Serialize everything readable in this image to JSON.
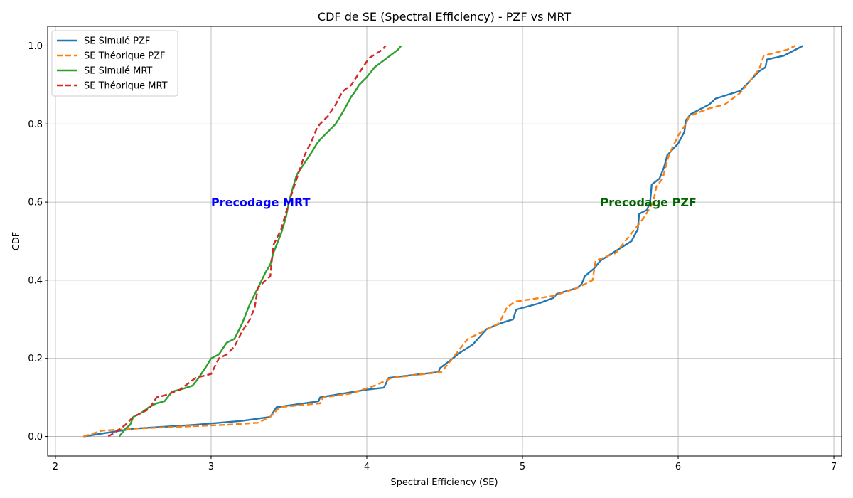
{
  "chart_data": {
    "type": "line",
    "title": "CDF de SE (Spectral Efficiency) - PZF vs MRT",
    "xlabel": "Spectral Efficiency (SE)",
    "ylabel": "CDF",
    "xlim": [
      1.95,
      7.05
    ],
    "ylim": [
      -0.05,
      1.05
    ],
    "xticks": [
      2,
      3,
      4,
      5,
      6,
      7
    ],
    "yticks": [
      0.0,
      0.2,
      0.4,
      0.6,
      0.8,
      1.0
    ],
    "xtick_labels": [
      "2",
      "3",
      "4",
      "5",
      "6",
      "7"
    ],
    "ytick_labels": [
      "0.0",
      "0.2",
      "0.4",
      "0.6",
      "0.8",
      "1.0"
    ],
    "grid": true,
    "legend": "top-left",
    "series": [
      {
        "name": "SE Simulé PZF",
        "color": "#1f77b4",
        "style": "solid",
        "x": [
          2.18,
          2.5,
          2.9,
          3.2,
          3.38,
          3.42,
          3.69,
          3.7,
          4.0,
          4.11,
          4.14,
          4.46,
          4.47,
          4.52,
          4.6,
          4.68,
          4.77,
          4.86,
          4.94,
          4.96,
          5.1,
          5.2,
          5.22,
          5.35,
          5.38,
          5.4,
          5.46,
          5.5,
          5.6,
          5.7,
          5.74,
          5.75,
          5.8,
          5.82,
          5.83,
          5.88,
          5.91,
          5.93,
          6.0,
          6.04,
          6.05,
          6.08,
          6.2,
          6.24,
          6.4,
          6.52,
          6.56,
          6.57,
          6.68,
          6.8
        ],
        "y": [
          0.0,
          0.02,
          0.03,
          0.04,
          0.05,
          0.075,
          0.09,
          0.1,
          0.12,
          0.125,
          0.15,
          0.165,
          0.175,
          0.19,
          0.215,
          0.235,
          0.275,
          0.29,
          0.3,
          0.325,
          0.34,
          0.355,
          0.365,
          0.38,
          0.39,
          0.41,
          0.43,
          0.45,
          0.475,
          0.5,
          0.53,
          0.57,
          0.58,
          0.6,
          0.645,
          0.66,
          0.69,
          0.72,
          0.75,
          0.78,
          0.81,
          0.825,
          0.85,
          0.865,
          0.885,
          0.935,
          0.945,
          0.965,
          0.975,
          1.0
        ]
      },
      {
        "name": "SE Théorique PZF",
        "color": "#ff7f0e",
        "style": "dashed",
        "x": [
          2.18,
          2.3,
          2.5,
          2.8,
          3.1,
          3.3,
          3.38,
          3.44,
          3.7,
          3.72,
          3.9,
          4.05,
          4.16,
          4.48,
          4.55,
          4.65,
          4.85,
          4.9,
          4.95,
          5.2,
          5.35,
          5.45,
          5.47,
          5.6,
          5.7,
          5.78,
          5.84,
          5.86,
          5.9,
          5.94,
          6.0,
          6.05,
          6.07,
          6.2,
          6.3,
          6.4,
          6.52,
          6.55,
          6.7,
          6.75
        ],
        "y": [
          0.0,
          0.015,
          0.02,
          0.025,
          0.03,
          0.035,
          0.05,
          0.075,
          0.085,
          0.1,
          0.11,
          0.13,
          0.15,
          0.165,
          0.2,
          0.25,
          0.29,
          0.33,
          0.345,
          0.36,
          0.38,
          0.4,
          0.45,
          0.47,
          0.52,
          0.56,
          0.6,
          0.64,
          0.66,
          0.72,
          0.77,
          0.8,
          0.82,
          0.84,
          0.85,
          0.88,
          0.94,
          0.975,
          0.99,
          1.0
        ]
      },
      {
        "name": "SE Simulé MRT",
        "color": "#2ca02c",
        "style": "solid",
        "x": [
          2.41,
          2.45,
          2.48,
          2.5,
          2.55,
          2.6,
          2.65,
          2.7,
          2.75,
          2.8,
          2.88,
          2.92,
          2.97,
          3.0,
          3.05,
          3.1,
          3.15,
          3.2,
          3.22,
          3.25,
          3.3,
          3.35,
          3.38,
          3.4,
          3.45,
          3.48,
          3.5,
          3.52,
          3.55,
          3.6,
          3.65,
          3.68,
          3.7,
          3.75,
          3.8,
          3.83,
          3.86,
          3.9,
          3.92,
          3.95,
          4.0,
          4.05,
          4.1,
          4.15,
          4.2,
          4.22
        ],
        "y": [
          0.0,
          0.02,
          0.03,
          0.05,
          0.06,
          0.075,
          0.085,
          0.09,
          0.115,
          0.12,
          0.13,
          0.15,
          0.18,
          0.2,
          0.21,
          0.24,
          0.25,
          0.29,
          0.31,
          0.34,
          0.38,
          0.42,
          0.44,
          0.47,
          0.52,
          0.56,
          0.6,
          0.63,
          0.67,
          0.7,
          0.73,
          0.75,
          0.76,
          0.78,
          0.8,
          0.82,
          0.84,
          0.87,
          0.88,
          0.9,
          0.92,
          0.945,
          0.96,
          0.975,
          0.99,
          1.0
        ]
      },
      {
        "name": "SE Théorique MRT",
        "color": "#d62728",
        "style": "dashed",
        "x": [
          2.34,
          2.4,
          2.45,
          2.5,
          2.6,
          2.65,
          2.7,
          2.8,
          2.9,
          3.0,
          3.05,
          3.1,
          3.15,
          3.2,
          3.25,
          3.28,
          3.3,
          3.35,
          3.38,
          3.4,
          3.45,
          3.5,
          3.55,
          3.6,
          3.65,
          3.68,
          3.7,
          3.75,
          3.8,
          3.84,
          3.85,
          3.9,
          3.95,
          4.0,
          4.02,
          4.06,
          4.1,
          4.12
        ],
        "y": [
          0.0,
          0.015,
          0.03,
          0.05,
          0.07,
          0.1,
          0.105,
          0.12,
          0.15,
          0.16,
          0.2,
          0.21,
          0.23,
          0.27,
          0.3,
          0.33,
          0.38,
          0.4,
          0.41,
          0.49,
          0.53,
          0.6,
          0.66,
          0.72,
          0.76,
          0.79,
          0.8,
          0.82,
          0.85,
          0.88,
          0.885,
          0.9,
          0.93,
          0.96,
          0.97,
          0.98,
          0.99,
          1.0
        ]
      }
    ],
    "annotations": [
      {
        "text": "Precodage MRT",
        "x": 3.0,
        "y": 0.6,
        "color": "#0000ff"
      },
      {
        "text": "Precodage PZF",
        "x": 5.5,
        "y": 0.6,
        "color": "#006400"
      }
    ]
  }
}
